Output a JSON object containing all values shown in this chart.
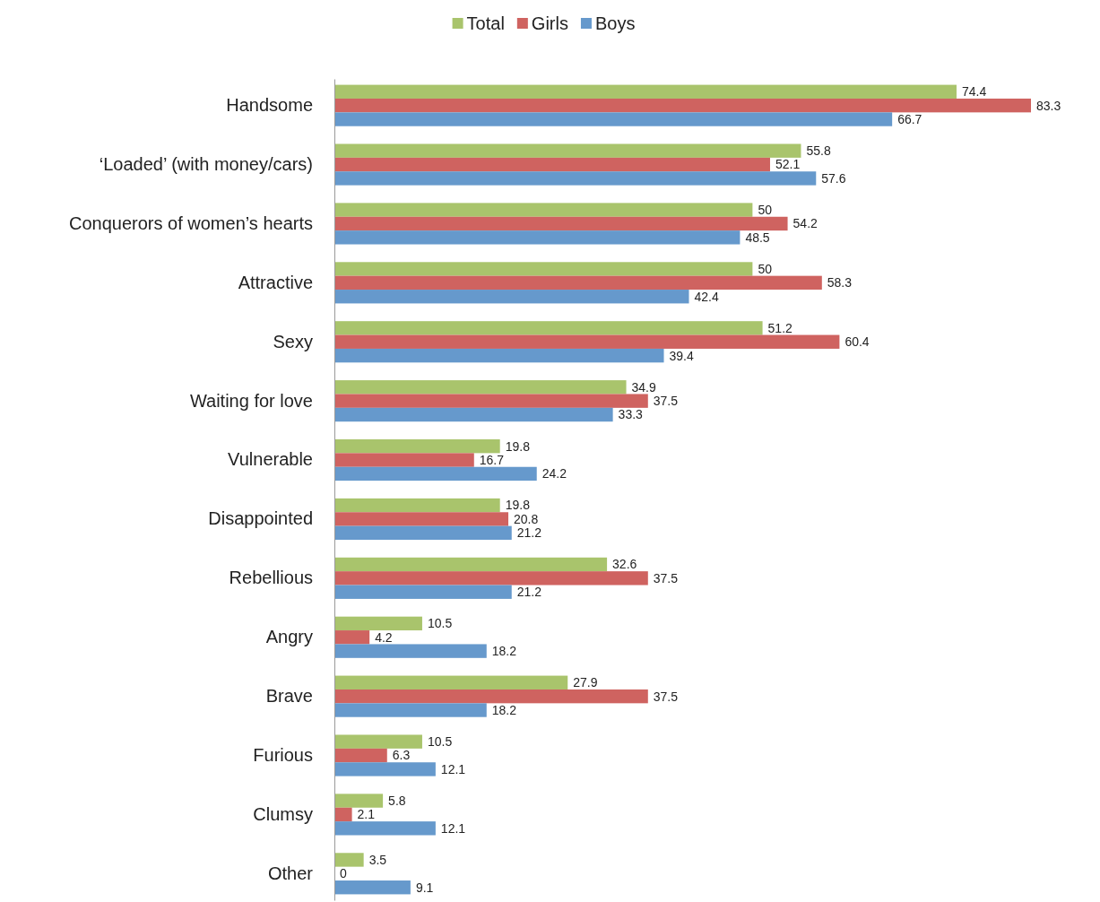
{
  "chart_data": {
    "type": "bar",
    "orientation": "horizontal",
    "data_labels": true,
    "legend": "top",
    "categories": [
      "Handsome",
      "‘Loaded’ (with money/cars)",
      "Conquerors of women’s hearts",
      "Attractive",
      "Sexy",
      "Waiting for love",
      "Vulnerable",
      "Disappointed",
      "Rebellious",
      "Angry",
      "Brave",
      "Furious",
      "Clumsy",
      "Other"
    ],
    "series": [
      {
        "name": "Total",
        "color": "#a9c46c",
        "values": [
          74.4,
          55.8,
          50,
          50,
          51.2,
          34.9,
          19.8,
          19.8,
          32.6,
          10.5,
          27.9,
          10.5,
          5.8,
          3.5
        ]
      },
      {
        "name": "Girls",
        "color": "#cf6360",
        "values": [
          83.3,
          52.1,
          54.2,
          58.3,
          60.4,
          37.5,
          16.7,
          20.8,
          37.5,
          4.2,
          37.5,
          6.3,
          2.1,
          0
        ]
      },
      {
        "name": "Boys",
        "color": "#6699cc",
        "values": [
          66.7,
          57.6,
          48.5,
          42.4,
          39.4,
          33.3,
          24.2,
          21.2,
          21.2,
          18.2,
          18.2,
          12.1,
          12.1,
          9.1
        ]
      }
    ]
  }
}
